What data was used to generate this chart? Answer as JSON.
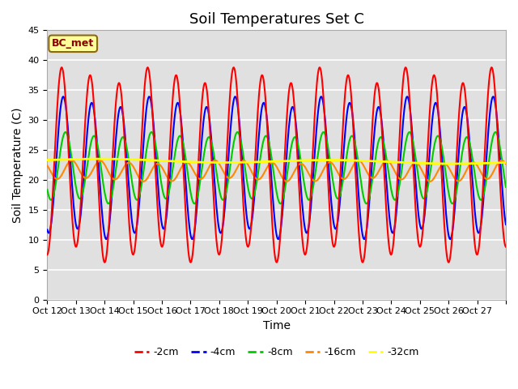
{
  "title": "Soil Temperatures Set C",
  "xlabel": "Time",
  "ylabel": "Soil Temperature (C)",
  "ylim": [
    0,
    45
  ],
  "xlim": [
    0,
    16
  ],
  "x_tick_labels": [
    "Oct 12",
    "Oct 13",
    "Oct 14",
    "Oct 15",
    "Oct 16",
    "Oct 17",
    "Oct 18",
    "Oct 19",
    "Oct 20",
    "Oct 21",
    "Oct 22",
    "Oct 23",
    "Oct 24",
    "Oct 25",
    "Oct 26",
    "Oct 27",
    ""
  ],
  "annotation_text": "BC_met",
  "annotation_bg": "#FFFF99",
  "annotation_border": "#8B6914",
  "series_colors": {
    "-2cm": "#FF0000",
    "-4cm": "#0000FF",
    "-8cm": "#00CC00",
    "-16cm": "#FF8800",
    "-32cm": "#FFFF00"
  },
  "line_widths": {
    "-2cm": 1.5,
    "-4cm": 1.5,
    "-8cm": 1.5,
    "-16cm": 1.5,
    "-32cm": 2.0
  },
  "legend_labels": [
    "-2cm",
    "-4cm",
    "-8cm",
    "-16cm",
    "-32cm"
  ],
  "bg_color": "#E0E0E0",
  "grid_color": "#FFFFFF",
  "title_fontsize": 13,
  "axis_fontsize": 10,
  "tick_fontsize": 8
}
